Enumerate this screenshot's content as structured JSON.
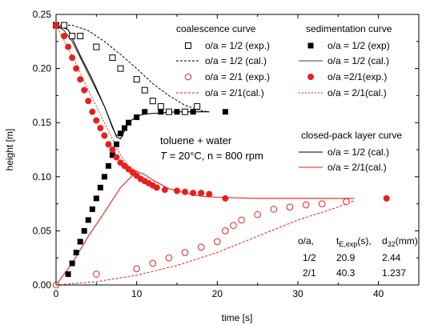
{
  "chart_data": {
    "type": "scatter",
    "xlabel": "time [s]",
    "ylabel": "height [m]",
    "xlim": [
      0,
      45
    ],
    "ylim": [
      0,
      0.25
    ],
    "x_ticks": [
      "0",
      "10",
      "20",
      "30",
      "40"
    ],
    "y_ticks": [
      "0.00",
      "0.05",
      "0.10",
      "0.15",
      "0.20",
      "0.25"
    ],
    "legend_headers": {
      "coalescence": "coalescence curve",
      "sedimentation": "sedimentation curve",
      "closed_pack": "closed-pack layer curve"
    },
    "legend_location": "top-right",
    "series": [
      {
        "id": "coal_exp_12",
        "name": "o/a = 1/2 (exp.)",
        "group": "coalescence",
        "marker": "square-open",
        "color": "#000000",
        "points": [
          [
            0,
            0.24
          ],
          [
            1,
            0.24
          ],
          [
            2,
            0.23
          ],
          [
            3,
            0.23
          ],
          [
            5,
            0.22
          ],
          [
            7,
            0.21
          ],
          [
            8,
            0.2
          ],
          [
            10,
            0.19
          ],
          [
            11,
            0.18
          ],
          [
            12,
            0.17
          ],
          [
            13,
            0.165
          ],
          [
            14,
            0.16
          ],
          [
            16,
            0.16
          ],
          [
            17.5,
            0.165
          ]
        ]
      },
      {
        "id": "coal_cal_12",
        "name": "o/a = 1/2 (cal.)",
        "group": "coalescence",
        "line": "dashed",
        "color": "#000000",
        "points": [
          [
            0,
            0.24
          ],
          [
            2,
            0.24
          ],
          [
            4,
            0.235
          ],
          [
            6,
            0.225
          ],
          [
            8,
            0.213
          ],
          [
            10,
            0.2
          ],
          [
            12,
            0.186
          ],
          [
            14,
            0.175
          ],
          [
            16,
            0.166
          ],
          [
            18,
            0.161
          ],
          [
            19,
            0.16
          ]
        ]
      },
      {
        "id": "coal_exp_21",
        "name": "o/a = 2/1 (exp.)",
        "group": "coalescence",
        "marker": "circle-open",
        "color": "#e8201c",
        "points": [
          [
            0,
            0.0
          ],
          [
            5,
            0.01
          ],
          [
            10,
            0.015
          ],
          [
            12,
            0.02
          ],
          [
            14,
            0.025
          ],
          [
            16,
            0.03
          ],
          [
            18,
            0.035
          ],
          [
            20,
            0.04
          ],
          [
            21,
            0.05
          ],
          [
            22,
            0.055
          ],
          [
            23,
            0.06
          ],
          [
            25,
            0.065
          ],
          [
            27,
            0.07
          ],
          [
            29,
            0.072
          ],
          [
            31,
            0.074
          ],
          [
            33,
            0.075
          ],
          [
            36,
            0.077
          ]
        ]
      },
      {
        "id": "coal_cal_21",
        "name": "o/a = 2/1(cal.)",
        "group": "coalescence",
        "line": "dashed",
        "color": "#e8201c",
        "points": [
          [
            0,
            0.0
          ],
          [
            5,
            0.003
          ],
          [
            10,
            0.009
          ],
          [
            15,
            0.018
          ],
          [
            20,
            0.03
          ],
          [
            25,
            0.045
          ],
          [
            30,
            0.06
          ],
          [
            35,
            0.072
          ],
          [
            37,
            0.078
          ]
        ]
      },
      {
        "id": "sed_exp_12",
        "name": "o/a = 1/2 (exp)",
        "group": "sedimentation",
        "marker": "square-filled",
        "color": "#000000",
        "points": [
          [
            1.5,
            0.01
          ],
          [
            2,
            0.02
          ],
          [
            2.5,
            0.03
          ],
          [
            3,
            0.04
          ],
          [
            3.5,
            0.05
          ],
          [
            4,
            0.06
          ],
          [
            4.5,
            0.07
          ],
          [
            5,
            0.08
          ],
          [
            5.5,
            0.09
          ],
          [
            6,
            0.1
          ],
          [
            6.5,
            0.11
          ],
          [
            7,
            0.12
          ],
          [
            7.5,
            0.13
          ],
          [
            8,
            0.14
          ],
          [
            8.5,
            0.145
          ],
          [
            9,
            0.15
          ],
          [
            10,
            0.155
          ],
          [
            11,
            0.16
          ],
          [
            13,
            0.16
          ],
          [
            15,
            0.16
          ],
          [
            17,
            0.16
          ],
          [
            21,
            0.16
          ]
        ]
      },
      {
        "id": "sed_cal_12",
        "name": "o/a = 1/2 (cal.)",
        "group": "sedimentation",
        "line": "solid-thin",
        "color": "#000000",
        "points": [
          [
            0,
            0.24
          ],
          [
            1,
            0.235
          ],
          [
            2,
            0.225
          ],
          [
            3,
            0.21
          ],
          [
            4,
            0.195
          ],
          [
            5,
            0.18
          ],
          [
            6,
            0.165
          ],
          [
            7,
            0.145
          ],
          [
            7.5,
            0.138
          ],
          [
            8,
            0.14
          ]
        ]
      },
      {
        "id": "sed_exp_21",
        "name": "o/a =2/1(exp.)",
        "group": "sedimentation",
        "marker": "circle-filled",
        "color": "#e8201c",
        "points": [
          [
            0,
            0.24
          ],
          [
            1,
            0.23
          ],
          [
            1.5,
            0.22
          ],
          [
            2,
            0.21
          ],
          [
            2.5,
            0.2
          ],
          [
            3,
            0.19
          ],
          [
            3.5,
            0.18
          ],
          [
            4,
            0.17
          ],
          [
            4.5,
            0.16
          ],
          [
            5,
            0.152
          ],
          [
            5.5,
            0.145
          ],
          [
            6,
            0.138
          ],
          [
            6.5,
            0.13
          ],
          [
            7,
            0.125
          ],
          [
            7.5,
            0.118
          ],
          [
            8,
            0.113
          ],
          [
            8.5,
            0.11
          ],
          [
            9,
            0.107
          ],
          [
            9.5,
            0.104
          ],
          [
            10,
            0.101
          ],
          [
            10.5,
            0.098
          ],
          [
            11,
            0.096
          ],
          [
            11.5,
            0.094
          ],
          [
            12,
            0.092
          ],
          [
            12.5,
            0.09
          ],
          [
            13.5,
            0.088
          ],
          [
            15,
            0.087
          ],
          [
            16,
            0.086
          ],
          [
            17,
            0.085
          ],
          [
            18,
            0.085
          ],
          [
            19,
            0.084
          ],
          [
            21,
            0.08
          ],
          [
            41,
            0.08
          ]
        ]
      },
      {
        "id": "sed_cal_21",
        "name": "o/a = 2/1(cal.)",
        "group": "sedimentation",
        "line": "dotted",
        "color": "#e8201c",
        "points": [
          [
            0,
            0.24
          ],
          [
            2,
            0.212
          ],
          [
            4,
            0.18
          ],
          [
            6,
            0.15
          ],
          [
            8,
            0.12
          ],
          [
            9,
            0.11
          ],
          [
            10,
            0.105
          ]
        ]
      },
      {
        "id": "cp_cal_12",
        "name": "o/a = 1/2 (cal.)",
        "group": "closed_pack",
        "line": "solid",
        "color": "#000000",
        "points": [
          [
            0,
            0.24
          ],
          [
            1.5,
            0.236
          ],
          [
            3,
            0.212
          ],
          [
            4.5,
            0.19
          ],
          [
            6,
            0.165
          ],
          [
            7.5,
            0.137
          ],
          [
            8,
            0.135
          ],
          [
            9,
            0.15
          ],
          [
            10,
            0.156
          ],
          [
            11,
            0.158
          ],
          [
            13,
            0.159
          ],
          [
            15,
            0.16
          ],
          [
            19,
            0.16
          ]
        ]
      },
      {
        "id": "cp_cal_21",
        "name": "o/a = 2/1(cal.)",
        "group": "closed_pack",
        "line": "solid",
        "color": "#e8201c",
        "points": [
          [
            0,
            0.0
          ],
          [
            2,
            0.02
          ],
          [
            4,
            0.045
          ],
          [
            6,
            0.067
          ],
          [
            8,
            0.09
          ],
          [
            10,
            0.105
          ],
          [
            11,
            0.102
          ],
          [
            12,
            0.097
          ],
          [
            14,
            0.089
          ],
          [
            16,
            0.085
          ],
          [
            18,
            0.082
          ],
          [
            20,
            0.081
          ],
          [
            25,
            0.08
          ],
          [
            30,
            0.08
          ],
          [
            37,
            0.08
          ]
        ]
      }
    ],
    "annotation": {
      "line1": "toluene + water",
      "T_symbol": "T",
      "line2_rest": " = 20°C, n = 800 rpm"
    },
    "table": {
      "col1": "o/a,",
      "col2_main": "t",
      "col2_sub": "E,exp",
      "col2_tail": "(s),",
      "col3_main": "d",
      "col3_sub": "32",
      "col3_tail": "(mm)",
      "rows": [
        {
          "oa": "1/2",
          "t": "20.9",
          "d": "2.44"
        },
        {
          "oa": "2/1",
          "t": "40.3",
          "d": "1.237"
        }
      ]
    }
  }
}
